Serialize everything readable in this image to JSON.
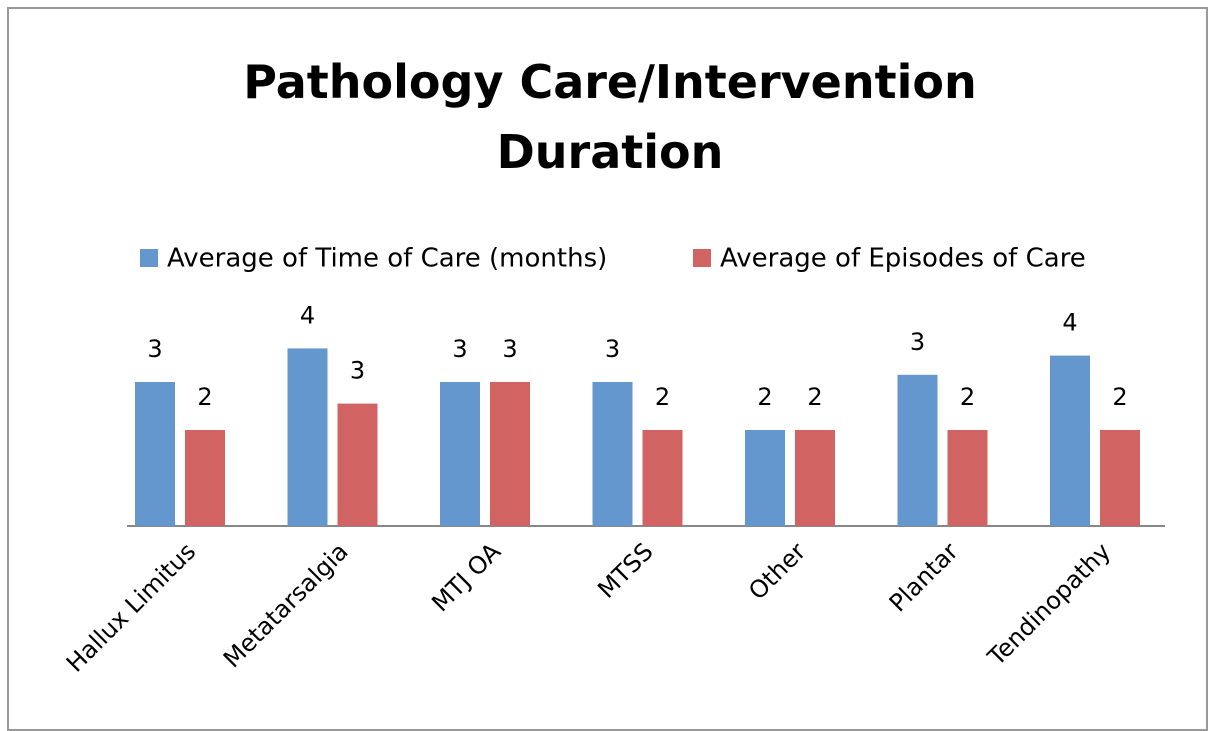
{
  "chart_data": {
    "type": "bar",
    "title": "Pathology Care/Intervention Duration",
    "categories": [
      "Hallux Limitus",
      "Metatarsalgia",
      "MTJ OA",
      "MTSS",
      "Other",
      "Plantar",
      "Tendinopathy"
    ],
    "series": [
      {
        "name": "Average of Time of Care (months)",
        "color": "#6497cd",
        "values": [
          3.0,
          3.7,
          3.0,
          3.0,
          2.0,
          3.15,
          3.55
        ],
        "value_labels": [
          "3",
          "4",
          "3",
          "3",
          "2",
          "3",
          "4"
        ]
      },
      {
        "name": "Average of Episodes of Care",
        "color": "#d16462",
        "values": [
          2.0,
          2.55,
          3.0,
          2.0,
          2.0,
          2.0,
          2.0
        ],
        "value_labels": [
          "2",
          "3",
          "3",
          "2",
          "2",
          "2",
          "2"
        ]
      }
    ],
    "legend": "top"
  }
}
